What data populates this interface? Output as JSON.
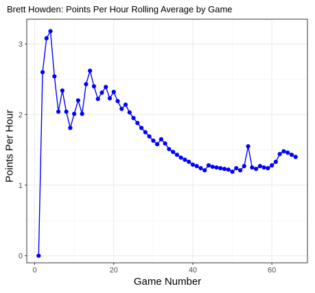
{
  "chart_data": {
    "type": "line",
    "title": "Brett Howden: Points Per Hour Rolling Average by Game",
    "xlabel": "Game Number",
    "ylabel": "Points Per Hour",
    "xlim": [
      -2,
      69
    ],
    "ylim": [
      -0.1,
      3.35
    ],
    "x_ticks": [
      0,
      20,
      40,
      60
    ],
    "y_ticks": [
      0,
      1,
      2,
      3
    ],
    "grid": true,
    "series": [
      {
        "color": "#0000ff",
        "points": [
          [
            1,
            0.0
          ],
          [
            2,
            2.6
          ],
          [
            3,
            3.08
          ],
          [
            4,
            3.18
          ],
          [
            5,
            2.54
          ],
          [
            6,
            2.04
          ],
          [
            7,
            2.34
          ],
          [
            8,
            2.04
          ],
          [
            9,
            1.81
          ],
          [
            10,
            2.01
          ],
          [
            11,
            2.2
          ],
          [
            12,
            2.01
          ],
          [
            13,
            2.43
          ],
          [
            14,
            2.62
          ],
          [
            15,
            2.4
          ],
          [
            16,
            2.22
          ],
          [
            17,
            2.31
          ],
          [
            18,
            2.39
          ],
          [
            19,
            2.23
          ],
          [
            20,
            2.32
          ],
          [
            21,
            2.19
          ],
          [
            22,
            2.08
          ],
          [
            23,
            2.14
          ],
          [
            24,
            2.03
          ],
          [
            25,
            1.95
          ],
          [
            26,
            1.88
          ],
          [
            27,
            1.81
          ],
          [
            28,
            1.75
          ],
          [
            29,
            1.69
          ],
          [
            30,
            1.63
          ],
          [
            31,
            1.58
          ],
          [
            32,
            1.65
          ],
          [
            33,
            1.59
          ],
          [
            34,
            1.51
          ],
          [
            35,
            1.47
          ],
          [
            36,
            1.43
          ],
          [
            37,
            1.39
          ],
          [
            38,
            1.36
          ],
          [
            39,
            1.33
          ],
          [
            40,
            1.29
          ],
          [
            41,
            1.27
          ],
          [
            42,
            1.24
          ],
          [
            43,
            1.21
          ],
          [
            44,
            1.28
          ],
          [
            45,
            1.26
          ],
          [
            46,
            1.25
          ],
          [
            47,
            1.24
          ],
          [
            48,
            1.23
          ],
          [
            49,
            1.22
          ],
          [
            50,
            1.19
          ],
          [
            51,
            1.24
          ],
          [
            52,
            1.21
          ],
          [
            53,
            1.27
          ],
          [
            54,
            1.55
          ],
          [
            55,
            1.25
          ],
          [
            56,
            1.23
          ],
          [
            57,
            1.27
          ],
          [
            58,
            1.25
          ],
          [
            59,
            1.24
          ],
          [
            60,
            1.28
          ],
          [
            61,
            1.33
          ],
          [
            62,
            1.44
          ],
          [
            63,
            1.48
          ],
          [
            64,
            1.46
          ],
          [
            65,
            1.43
          ],
          [
            66,
            1.4
          ]
        ]
      }
    ]
  }
}
